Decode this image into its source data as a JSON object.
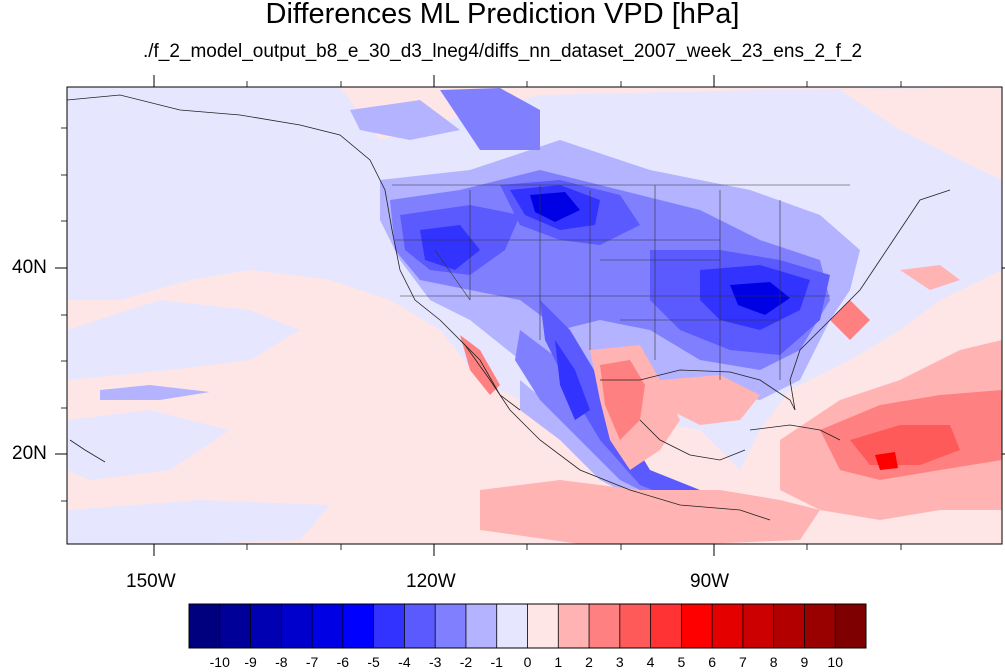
{
  "title": "Differences ML Prediction VPD [hPa]",
  "subtitle": "./f_2_model_output_b8_e_30_d3_lneg4/diffs_nn_dataset_2007_week_23_ens_2_f_2",
  "lat_labels": [
    "40N",
    "20N"
  ],
  "lon_labels": [
    "150W",
    "120W",
    "90W"
  ],
  "colorbar": {
    "labels": [
      "-10",
      "-9",
      "-8",
      "-7",
      "-6",
      "-5",
      "-4",
      "-3",
      "-2",
      "-1",
      "0",
      "1",
      "2",
      "3",
      "4",
      "5",
      "6",
      "7",
      "8",
      "9",
      "10"
    ],
    "colors": [
      "#00007f",
      "#000099",
      "#0000b2",
      "#0000cc",
      "#0000e5",
      "#0000ff",
      "#3333ff",
      "#5a5aff",
      "#8080ff",
      "#b3b3ff",
      "#e6e6ff",
      "#ffe6e6",
      "#ffb3b3",
      "#ff8080",
      "#ff5a5a",
      "#ff3333",
      "#ff0000",
      "#e50000",
      "#cc0000",
      "#b20000",
      "#990000",
      "#7f0000"
    ]
  },
  "colors": {
    "land_bg": "#e6e6ff",
    "ocean_bg": "#ffe6e6"
  }
}
